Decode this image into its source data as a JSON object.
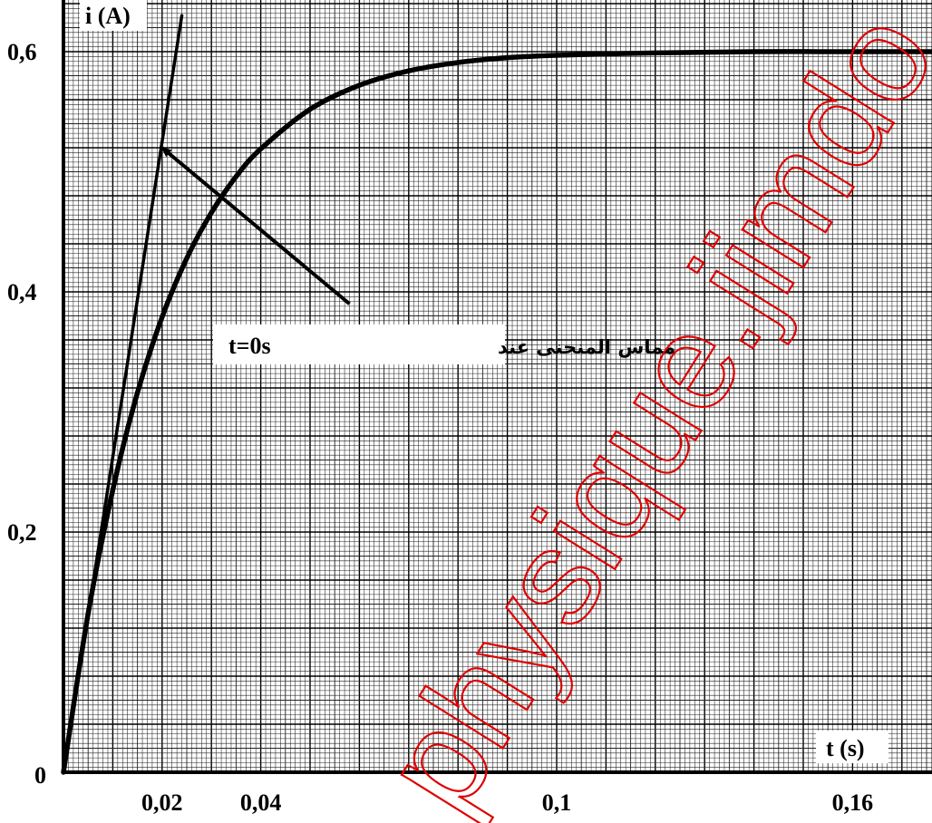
{
  "chart_data": {
    "type": "line",
    "xlabel": "t (s)",
    "ylabel": "i (A)",
    "xlim": [
      0,
      0.18
    ],
    "ylim": [
      0,
      0.63
    ],
    "x_ticks": [
      {
        "value": 0.02,
        "label": "0,02"
      },
      {
        "value": 0.04,
        "label": "0,04"
      },
      {
        "value": 0.1,
        "label": "0,1"
      },
      {
        "value": 0.16,
        "label": "0,16"
      }
    ],
    "y_ticks": [
      {
        "value": 0.2,
        "label": "0,2"
      },
      {
        "value": 0.4,
        "label": "0,4"
      },
      {
        "value": 0.6,
        "label": "0,6"
      }
    ],
    "origin_label": "0",
    "grid": true,
    "series": [
      {
        "kind": "curve",
        "x": [
          0,
          0.005,
          0.01,
          0.015,
          0.02,
          0.025,
          0.03,
          0.035,
          0.04,
          0.05,
          0.06,
          0.07,
          0.08,
          0.09,
          0.1,
          0.12,
          0.14,
          0.16,
          0.18
        ],
        "y": [
          0,
          0.132,
          0.235,
          0.316,
          0.379,
          0.428,
          0.466,
          0.496,
          0.519,
          0.552,
          0.572,
          0.584,
          0.591,
          0.595,
          0.597,
          0.599,
          0.6,
          0.6,
          0.6
        ]
      },
      {
        "kind": "tangent",
        "x": [
          0,
          0.024
        ],
        "y": [
          0,
          0.63
        ]
      }
    ],
    "annotation": {
      "text_ar": "مماس المنحنى عند",
      "text_math": "t=0s",
      "arrow_from": [
        0.058,
        0.39
      ],
      "arrow_to": [
        0.02,
        0.52
      ]
    },
    "watermark": "physique.jimdo.com"
  }
}
